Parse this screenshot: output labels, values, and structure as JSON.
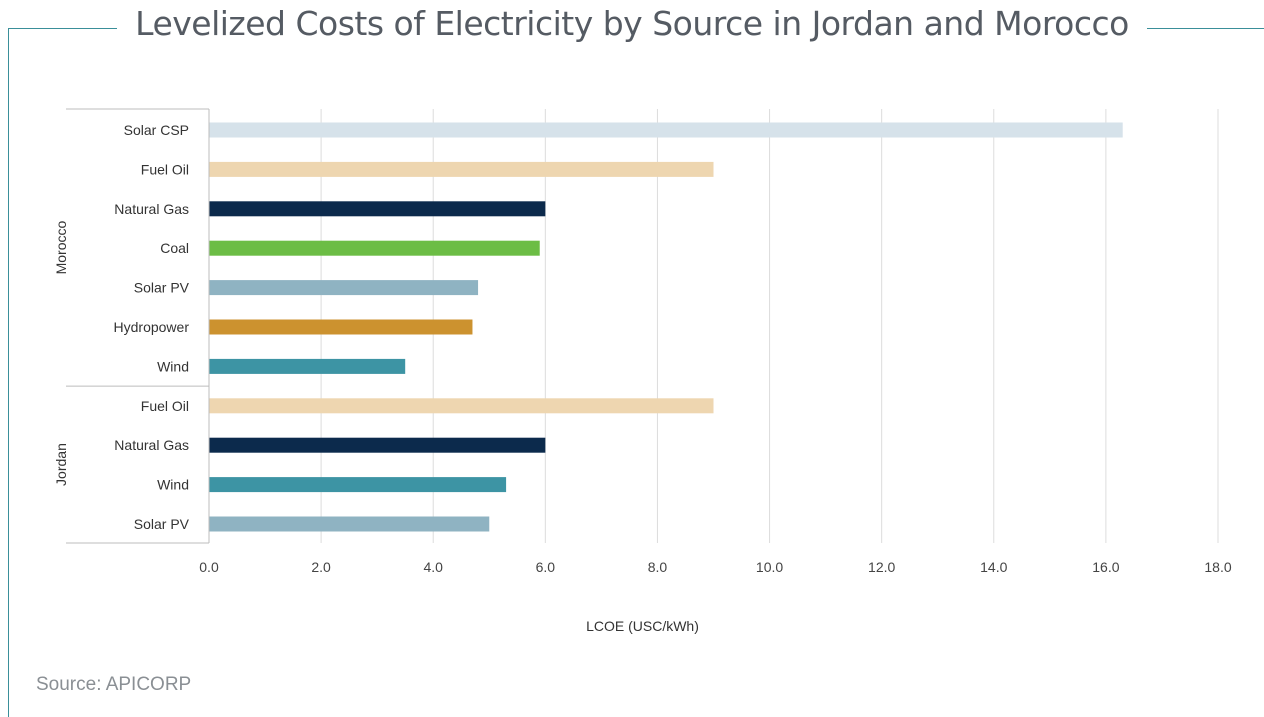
{
  "title": "Levelized Costs of Electricity by Source in Jordan and Morocco",
  "source": "Source: APICORP",
  "chart_data": {
    "type": "bar",
    "orientation": "horizontal",
    "title": "Levelized Costs of Electricity by Source in Jordan and Morocco",
    "xlabel": "LCOE (USC/kWh)",
    "ylabel": "",
    "xlim": [
      0,
      18
    ],
    "xticks": [
      "0.0",
      "2.0",
      "4.0",
      "6.0",
      "8.0",
      "10.0",
      "12.0",
      "14.0",
      "16.0",
      "18.0"
    ],
    "grid": "vertical",
    "groups": [
      {
        "name": "Morocco",
        "bars": [
          {
            "label": "Solar CSP",
            "value": 16.3,
            "color": "#d6e2ea"
          },
          {
            "label": "Fuel Oil",
            "value": 9.0,
            "color": "#eed6b0"
          },
          {
            "label": "Natural Gas",
            "value": 6.0,
            "color": "#0c2a4c"
          },
          {
            "label": "Coal",
            "value": 5.9,
            "color": "#6cbd45"
          },
          {
            "label": "Solar PV",
            "value": 4.8,
            "color": "#8fb3c2"
          },
          {
            "label": "Hydropower",
            "value": 4.7,
            "color": "#cc922f"
          },
          {
            "label": "Wind",
            "value": 3.5,
            "color": "#3d94a4"
          }
        ]
      },
      {
        "name": "Jordan",
        "bars": [
          {
            "label": "Fuel Oil",
            "value": 9.0,
            "color": "#eed6b0"
          },
          {
            "label": "Natural Gas",
            "value": 6.0,
            "color": "#0c2a4c"
          },
          {
            "label": "Wind",
            "value": 5.3,
            "color": "#3d94a4"
          },
          {
            "label": "Solar PV",
            "value": 5.0,
            "color": "#8fb3c2"
          }
        ]
      }
    ]
  }
}
